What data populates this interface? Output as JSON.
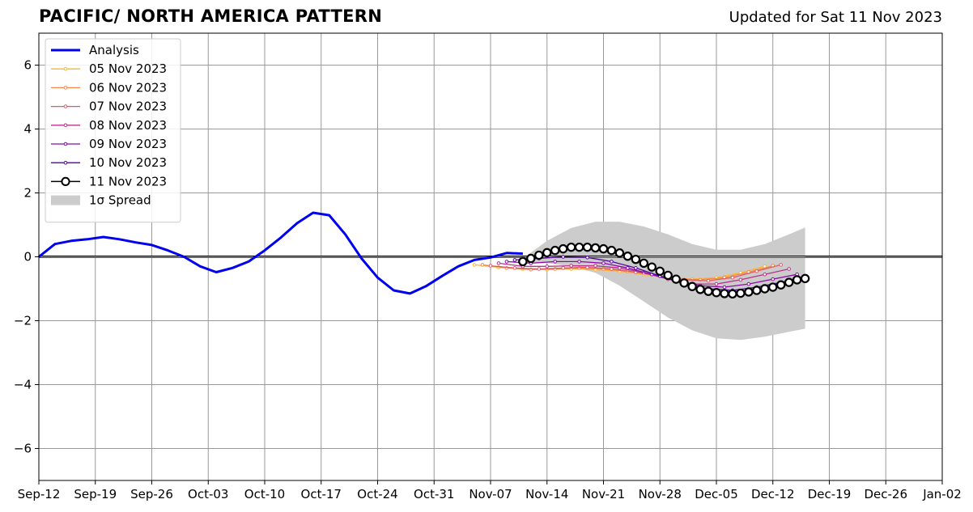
{
  "header": {
    "title": "PACIFIC/ NORTH AMERICA PATTERN",
    "updated": "Updated for Sat 11 Nov 2023"
  },
  "colors": {
    "analysis": "#0000ee",
    "spread": "#cccccc",
    "grid": "#999999",
    "forecasts": [
      "#fdb42f",
      "#f48849",
      "#db5c68",
      "#b83289",
      "#8b0aa5",
      "#5302a3",
      "#000000"
    ]
  },
  "chart_data": {
    "type": "line",
    "title": "PACIFIC/ NORTH AMERICA PATTERN",
    "xlabel": "",
    "ylabel": "",
    "x_axis": "date",
    "xlim": [
      "2023-09-12",
      "2024-01-02"
    ],
    "ylim": [
      -7,
      7
    ],
    "x_ticks": [
      "Sep-12",
      "Sep-19",
      "Sep-26",
      "Oct-03",
      "Oct-10",
      "Oct-17",
      "Oct-24",
      "Oct-31",
      "Nov-07",
      "Nov-14",
      "Nov-21",
      "Nov-28",
      "Dec-05",
      "Dec-12",
      "Dec-19",
      "Dec-26",
      "Jan-02"
    ],
    "y_ticks": [
      -6,
      -4,
      -2,
      0,
      2,
      4,
      6
    ],
    "y_tick_labels": [
      "−6",
      "−4",
      "−2",
      "0",
      "2",
      "4",
      "6"
    ],
    "grid": true,
    "legend_position": "top-left",
    "analysis": {
      "name": "Analysis",
      "x": [
        "2023-09-12",
        "2023-09-14",
        "2023-09-16",
        "2023-09-18",
        "2023-09-20",
        "2023-09-22",
        "2023-09-24",
        "2023-09-26",
        "2023-09-28",
        "2023-09-30",
        "2023-10-02",
        "2023-10-04",
        "2023-10-06",
        "2023-10-08",
        "2023-10-10",
        "2023-10-12",
        "2023-10-14",
        "2023-10-16",
        "2023-10-18",
        "2023-10-20",
        "2023-10-22",
        "2023-10-24",
        "2023-10-26",
        "2023-10-28",
        "2023-10-30",
        "2023-11-01",
        "2023-11-03",
        "2023-11-05",
        "2023-11-07",
        "2023-11-09",
        "2023-11-11"
      ],
      "y": [
        0.0,
        0.4,
        0.5,
        0.55,
        0.62,
        0.55,
        0.45,
        0.37,
        0.2,
        0.0,
        -0.3,
        -0.48,
        -0.35,
        -0.15,
        0.2,
        0.6,
        1.05,
        1.38,
        1.3,
        0.7,
        -0.05,
        -0.65,
        -1.05,
        -1.15,
        -0.92,
        -0.6,
        -0.3,
        -0.1,
        -0.02,
        0.12,
        0.1
      ]
    },
    "forecasts": [
      {
        "name": "05 Nov 2023",
        "x": [
          "2023-11-05",
          "2023-11-08",
          "2023-11-11",
          "2023-11-14",
          "2023-11-17",
          "2023-11-20",
          "2023-11-23",
          "2023-11-26",
          "2023-11-29",
          "2023-12-02",
          "2023-12-05",
          "2023-12-08",
          "2023-12-11"
        ],
        "y": [
          -0.25,
          -0.33,
          -0.38,
          -0.4,
          -0.38,
          -0.4,
          -0.45,
          -0.55,
          -0.65,
          -0.7,
          -0.65,
          -0.5,
          -0.3
        ]
      },
      {
        "name": "06 Nov 2023",
        "x": [
          "2023-11-06",
          "2023-11-09",
          "2023-11-12",
          "2023-11-15",
          "2023-11-18",
          "2023-11-21",
          "2023-11-24",
          "2023-11-27",
          "2023-11-30",
          "2023-12-03",
          "2023-12-06",
          "2023-12-09",
          "2023-12-12"
        ],
        "y": [
          -0.25,
          -0.35,
          -0.4,
          -0.38,
          -0.35,
          -0.38,
          -0.45,
          -0.55,
          -0.68,
          -0.72,
          -0.65,
          -0.48,
          -0.28
        ]
      },
      {
        "name": "07 Nov 2023",
        "x": [
          "2023-11-07",
          "2023-11-10",
          "2023-11-13",
          "2023-11-16",
          "2023-11-19",
          "2023-11-22",
          "2023-11-25",
          "2023-11-28",
          "2023-12-01",
          "2023-12-04",
          "2023-12-07",
          "2023-12-10",
          "2023-12-13"
        ],
        "y": [
          -0.28,
          -0.35,
          -0.38,
          -0.35,
          -0.33,
          -0.38,
          -0.48,
          -0.6,
          -0.72,
          -0.75,
          -0.65,
          -0.45,
          -0.25
        ]
      },
      {
        "name": "08 Nov 2023",
        "x": [
          "2023-11-08",
          "2023-11-11",
          "2023-11-14",
          "2023-11-17",
          "2023-11-20",
          "2023-11-23",
          "2023-11-26",
          "2023-11-29",
          "2023-12-02",
          "2023-12-05",
          "2023-12-08",
          "2023-12-11",
          "2023-12-14"
        ],
        "y": [
          -0.2,
          -0.3,
          -0.3,
          -0.28,
          -0.28,
          -0.35,
          -0.5,
          -0.7,
          -0.85,
          -0.85,
          -0.72,
          -0.55,
          -0.38
        ]
      },
      {
        "name": "09 Nov 2023",
        "x": [
          "2023-11-09",
          "2023-11-12",
          "2023-11-15",
          "2023-11-18",
          "2023-11-21",
          "2023-11-24",
          "2023-11-27",
          "2023-11-30",
          "2023-12-03",
          "2023-12-06",
          "2023-12-09",
          "2023-12-12",
          "2023-12-15"
        ],
        "y": [
          -0.15,
          -0.2,
          -0.15,
          -0.15,
          -0.2,
          -0.35,
          -0.55,
          -0.75,
          -0.9,
          -0.95,
          -0.85,
          -0.7,
          -0.55
        ]
      },
      {
        "name": "10 Nov 2023",
        "x": [
          "2023-11-10",
          "2023-11-13",
          "2023-11-16",
          "2023-11-19",
          "2023-11-22",
          "2023-11-25",
          "2023-11-28",
          "2023-12-01",
          "2023-12-04",
          "2023-12-07",
          "2023-12-10",
          "2023-12-13",
          "2023-12-16"
        ],
        "y": [
          -0.1,
          -0.05,
          0.0,
          -0.02,
          -0.15,
          -0.35,
          -0.6,
          -0.85,
          -1.0,
          -1.05,
          -0.95,
          -0.8,
          -0.65
        ]
      },
      {
        "name": "11 Nov 2023",
        "x": [
          "2023-11-11",
          "2023-11-12",
          "2023-11-13",
          "2023-11-14",
          "2023-11-15",
          "2023-11-16",
          "2023-11-17",
          "2023-11-18",
          "2023-11-19",
          "2023-11-20",
          "2023-11-21",
          "2023-11-22",
          "2023-11-23",
          "2023-11-24",
          "2023-11-25",
          "2023-11-26",
          "2023-11-27",
          "2023-11-28",
          "2023-11-29",
          "2023-11-30",
          "2023-12-01",
          "2023-12-02",
          "2023-12-03",
          "2023-12-04",
          "2023-12-05",
          "2023-12-06",
          "2023-12-07",
          "2023-12-08",
          "2023-12-09",
          "2023-12-10",
          "2023-12-11",
          "2023-12-12",
          "2023-12-13",
          "2023-12-14",
          "2023-12-15",
          "2023-12-16"
        ],
        "y": [
          -0.15,
          -0.05,
          0.05,
          0.13,
          0.2,
          0.25,
          0.3,
          0.3,
          0.3,
          0.28,
          0.25,
          0.2,
          0.12,
          0.02,
          -0.08,
          -0.2,
          -0.32,
          -0.45,
          -0.58,
          -0.7,
          -0.82,
          -0.93,
          -1.02,
          -1.08,
          -1.12,
          -1.15,
          -1.16,
          -1.14,
          -1.1,
          -1.05,
          -1.0,
          -0.95,
          -0.88,
          -0.8,
          -0.72,
          -0.68
        ]
      }
    ],
    "spread": {
      "name": "1σ Spread",
      "x": [
        "2023-11-11",
        "2023-11-14",
        "2023-11-17",
        "2023-11-20",
        "2023-11-23",
        "2023-11-26",
        "2023-11-29",
        "2023-12-02",
        "2023-12-05",
        "2023-12-08",
        "2023-12-11",
        "2023-12-14",
        "2023-12-16"
      ],
      "upper": [
        -0.05,
        0.5,
        0.9,
        1.1,
        1.1,
        0.95,
        0.7,
        0.4,
        0.22,
        0.22,
        0.4,
        0.7,
        0.92
      ],
      "lower": [
        -0.2,
        -0.2,
        -0.3,
        -0.5,
        -0.9,
        -1.4,
        -1.9,
        -2.3,
        -2.55,
        -2.6,
        -2.5,
        -2.35,
        -2.25
      ]
    }
  }
}
